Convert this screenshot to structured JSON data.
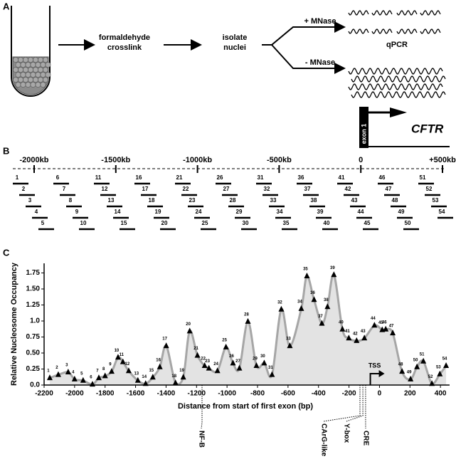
{
  "panel_a": {
    "letter": "A",
    "step1": [
      "formaldehyde",
      "crosslink"
    ],
    "step2": [
      "isolate",
      "nuclei"
    ],
    "plus_mnase": "+ MNase",
    "minus_mnase": "- MNase",
    "qpcr": "qPCR"
  },
  "panel_b": {
    "letter": "B",
    "exon_label": "exon 1",
    "gene": "CFTR",
    "ruler_labels": [
      "-2000kb",
      "-1500kb",
      "-1000kb",
      "-500kb",
      "0",
      "+500kb"
    ],
    "fragment_labels": [
      "1",
      "2",
      "3",
      "4",
      "5",
      "6",
      "7",
      "8",
      "9",
      "10",
      "11",
      "12",
      "13",
      "14",
      "15",
      "16",
      "17",
      "18",
      "19",
      "20",
      "21",
      "22",
      "23",
      "24",
      "25",
      "26",
      "27",
      "28",
      "29",
      "30",
      "31",
      "32",
      "33",
      "34",
      "35",
      "36",
      "37",
      "38",
      "39",
      "40",
      "41",
      "42",
      "43",
      "44",
      "45",
      "46",
      "47",
      "48",
      "49",
      "50",
      "51",
      "52",
      "53",
      "54"
    ]
  },
  "chart_data": {
    "type": "area",
    "letter": "C",
    "xlabel": "Distance from start of first exon (bp)",
    "ylabel": "Relative Nucleosome Occupancy",
    "x": [
      -2163,
      -2107,
      -2042,
      -2000,
      -1944,
      -1883,
      -1841,
      -1800,
      -1757,
      -1715,
      -1683,
      -1645,
      -1585,
      -1534,
      -1487,
      -1441,
      -1399,
      -1338,
      -1287,
      -1245,
      -1194,
      -1147,
      -1119,
      -1063,
      -1007,
      -961,
      -919,
      -863,
      -807,
      -756,
      -705,
      -644,
      -588,
      -513,
      -476,
      -429,
      -378,
      -341,
      -299,
      -243,
      -201,
      -150,
      -99,
      -33,
      18,
      41,
      87,
      148,
      204,
      246,
      288,
      344,
      396,
      437
    ],
    "values": [
      0.11,
      0.16,
      0.2,
      0.09,
      0.07,
      0.01,
      0.11,
      0.14,
      0.21,
      0.43,
      0.36,
      0.22,
      0.07,
      0.02,
      0.12,
      0.28,
      0.61,
      0.03,
      0.12,
      0.84,
      0.46,
      0.3,
      0.26,
      0.22,
      0.59,
      0.34,
      0.26,
      0.99,
      0.3,
      0.34,
      0.16,
      1.18,
      0.61,
      1.19,
      1.7,
      1.33,
      0.96,
      1.22,
      1.72,
      0.87,
      0.73,
      0.69,
      0.73,
      0.93,
      0.86,
      0.87,
      0.81,
      0.21,
      0.09,
      0.28,
      0.37,
      0.02,
      0.17,
      0.3
    ],
    "point_labels": [
      1,
      2,
      3,
      4,
      5,
      6,
      7,
      8,
      9,
      10,
      11,
      12,
      13,
      14,
      15,
      16,
      17,
      18,
      19,
      20,
      21,
      22,
      23,
      24,
      25,
      26,
      27,
      28,
      29,
      30,
      31,
      32,
      33,
      34,
      35,
      36,
      37,
      38,
      39,
      40,
      41,
      42,
      43,
      44,
      45,
      46,
      47,
      48,
      49,
      50,
      51,
      52,
      53,
      54
    ],
    "color": "#a6a6a6",
    "fill": "#e3e3e3",
    "marker_color": "#000000",
    "xlim": [
      -2200,
      460
    ],
    "ylim": [
      0,
      1.9
    ],
    "xticks": [
      -2200,
      -2000,
      -1800,
      -1600,
      -1400,
      -1200,
      -1000,
      -800,
      -600,
      -400,
      -200,
      0,
      200,
      400
    ],
    "yticks": [
      {
        "value": 0,
        "label": "0.0"
      },
      0.25,
      {
        "value": 0.5,
        "label": "0.50"
      },
      0.75,
      {
        "value": 1,
        "label": "1.0"
      },
      1.25,
      {
        "value": 1.5,
        "label": "1.50"
      },
      1.75
    ],
    "tss": {
      "text": "TSS",
      "x": -60
    },
    "annotations": [
      {
        "text": "NF-B",
        "x": -1164
      },
      {
        "text": "CArG-like",
        "x": -128
      },
      {
        "text": "Y-box",
        "x": -109
      },
      {
        "text": "CRE",
        "x": -91
      }
    ]
  }
}
